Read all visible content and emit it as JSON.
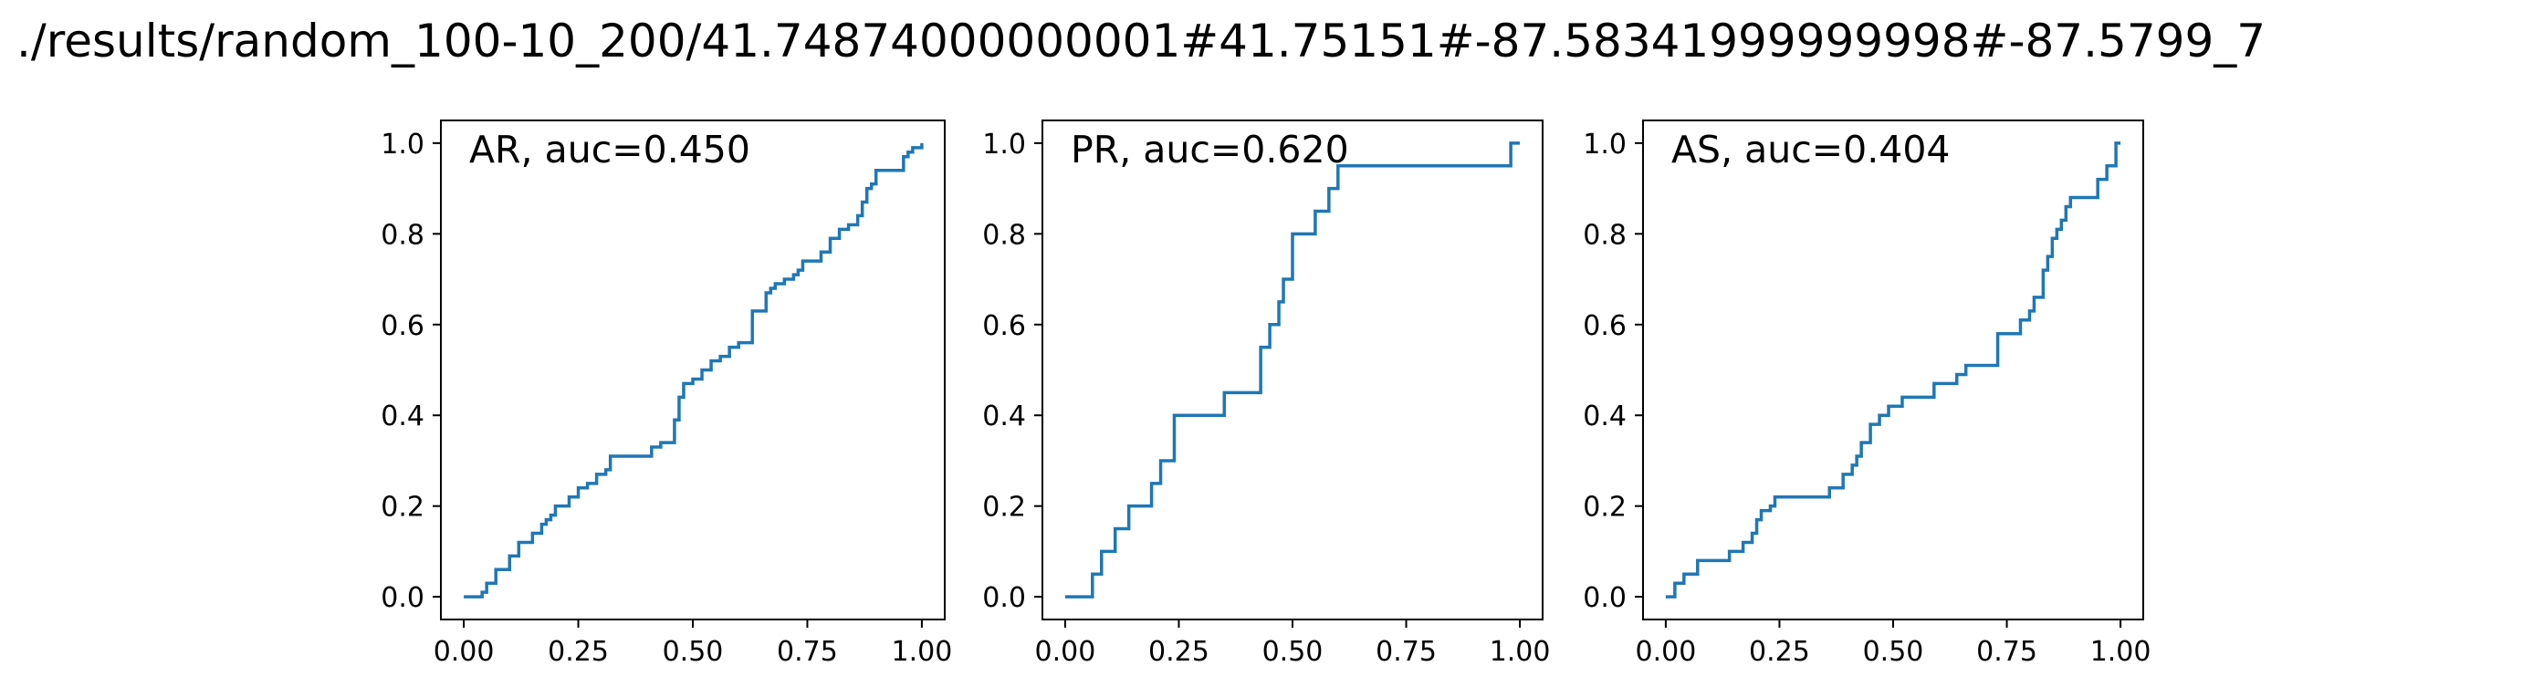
{
  "figure_title": "./results/random_100-10_200/41.74874000000001#41.75151#-87.58341999999998#-87.5799_7",
  "chart_data": [
    {
      "type": "line",
      "label": "AR, auc=0.450",
      "xlim": [
        -0.05,
        1.05
      ],
      "ylim": [
        -0.05,
        1.05
      ],
      "xticks": [
        "0.00",
        "0.25",
        "0.50",
        "0.75",
        "1.00"
      ],
      "yticks": [
        "0.0",
        "0.2",
        "0.4",
        "0.6",
        "0.8",
        "1.0"
      ],
      "series": [
        {
          "color": "#1f77b4",
          "step": true,
          "x": [
            0.0,
            0.04,
            0.05,
            0.07,
            0.1,
            0.12,
            0.15,
            0.17,
            0.18,
            0.19,
            0.2,
            0.23,
            0.25,
            0.27,
            0.29,
            0.31,
            0.32,
            0.34,
            0.41,
            0.43,
            0.46,
            0.47,
            0.48,
            0.5,
            0.52,
            0.54,
            0.56,
            0.58,
            0.6,
            0.63,
            0.66,
            0.67,
            0.68,
            0.7,
            0.72,
            0.73,
            0.74,
            0.75,
            0.78,
            0.8,
            0.82,
            0.84,
            0.86,
            0.87,
            0.88,
            0.89,
            0.9,
            0.92,
            0.93,
            0.96,
            0.97,
            0.98,
            1.0
          ],
          "y": [
            0.0,
            0.01,
            0.03,
            0.06,
            0.09,
            0.12,
            0.14,
            0.16,
            0.17,
            0.18,
            0.2,
            0.22,
            0.24,
            0.25,
            0.27,
            0.28,
            0.31,
            0.31,
            0.33,
            0.34,
            0.39,
            0.44,
            0.47,
            0.48,
            0.5,
            0.52,
            0.53,
            0.55,
            0.56,
            0.63,
            0.67,
            0.68,
            0.69,
            0.7,
            0.71,
            0.72,
            0.74,
            0.74,
            0.76,
            0.79,
            0.81,
            0.82,
            0.84,
            0.87,
            0.9,
            0.91,
            0.94,
            0.94,
            0.94,
            0.97,
            0.98,
            0.99,
            1.0
          ]
        }
      ]
    },
    {
      "type": "line",
      "label": "PR, auc=0.620",
      "xlim": [
        -0.05,
        1.05
      ],
      "ylim": [
        -0.05,
        1.05
      ],
      "xticks": [
        "0.00",
        "0.25",
        "0.50",
        "0.75",
        "1.00"
      ],
      "yticks": [
        "0.0",
        "0.2",
        "0.4",
        "0.6",
        "0.8",
        "1.0"
      ],
      "series": [
        {
          "color": "#1f77b4",
          "step": true,
          "x": [
            0.0,
            0.06,
            0.08,
            0.11,
            0.14,
            0.19,
            0.21,
            0.24,
            0.35,
            0.43,
            0.45,
            0.47,
            0.48,
            0.5,
            0.55,
            0.58,
            0.6,
            0.98,
            1.0
          ],
          "y": [
            0.0,
            0.05,
            0.1,
            0.15,
            0.2,
            0.25,
            0.3,
            0.4,
            0.45,
            0.55,
            0.6,
            0.65,
            0.7,
            0.8,
            0.85,
            0.9,
            0.95,
            1.0,
            1.0
          ]
        }
      ]
    },
    {
      "type": "line",
      "label": "AS, auc=0.404",
      "xlim": [
        -0.05,
        1.05
      ],
      "ylim": [
        -0.05,
        1.05
      ],
      "xticks": [
        "0.00",
        "0.25",
        "0.50",
        "0.75",
        "1.00"
      ],
      "yticks": [
        "0.0",
        "0.2",
        "0.4",
        "0.6",
        "0.8",
        "1.0"
      ],
      "series": [
        {
          "color": "#1f77b4",
          "step": true,
          "x": [
            0.0,
            0.02,
            0.04,
            0.07,
            0.14,
            0.17,
            0.19,
            0.2,
            0.21,
            0.23,
            0.24,
            0.36,
            0.39,
            0.41,
            0.42,
            0.43,
            0.45,
            0.47,
            0.49,
            0.52,
            0.59,
            0.64,
            0.66,
            0.73,
            0.78,
            0.8,
            0.81,
            0.83,
            0.84,
            0.85,
            0.86,
            0.87,
            0.88,
            0.89,
            0.9,
            0.95,
            0.97,
            0.99,
            1.0
          ],
          "y": [
            0.0,
            0.03,
            0.05,
            0.08,
            0.1,
            0.12,
            0.14,
            0.17,
            0.19,
            0.2,
            0.22,
            0.24,
            0.27,
            0.29,
            0.31,
            0.34,
            0.38,
            0.4,
            0.42,
            0.44,
            0.47,
            0.49,
            0.51,
            0.58,
            0.61,
            0.63,
            0.66,
            0.72,
            0.75,
            0.79,
            0.81,
            0.83,
            0.86,
            0.88,
            0.88,
            0.92,
            0.95,
            1.0,
            1.0
          ]
        }
      ]
    }
  ]
}
